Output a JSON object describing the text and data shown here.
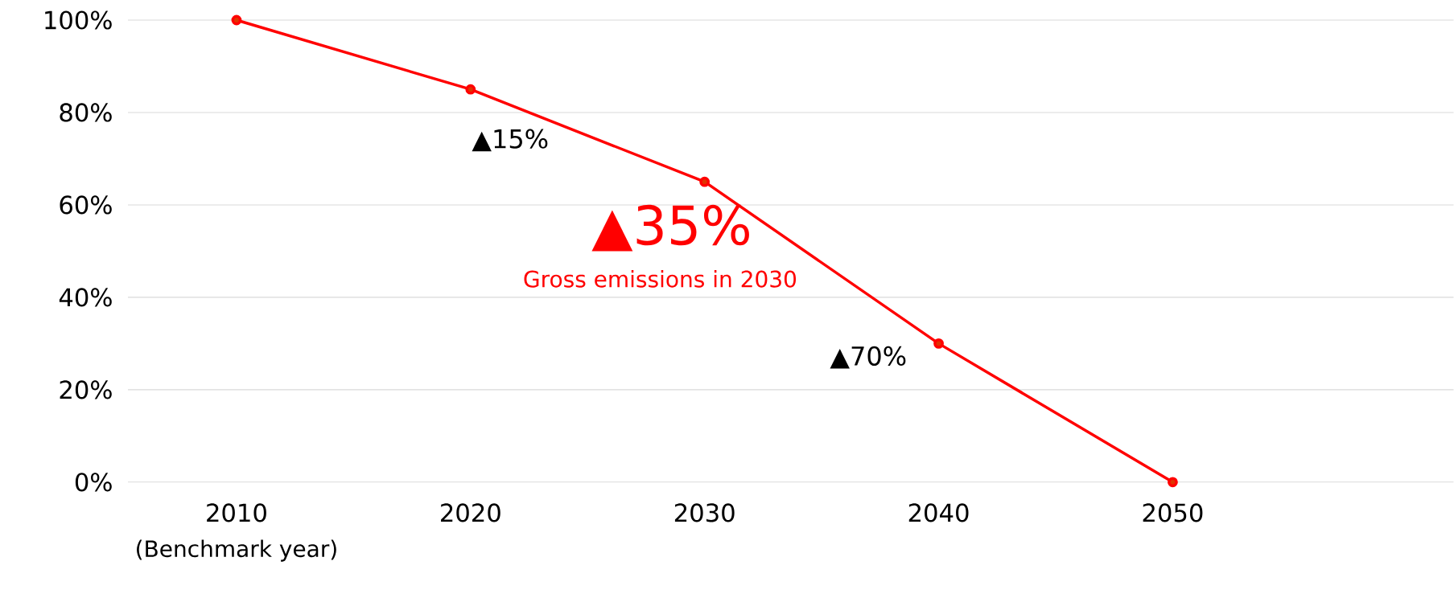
{
  "chart_data": {
    "type": "line",
    "categories": [
      "2010",
      "2020",
      "2030",
      "2040",
      "2050"
    ],
    "series": [
      {
        "color": "#ff0000",
        "values": [
          100,
          85,
          65,
          30,
          0
        ]
      }
    ],
    "ylim": [
      0,
      100
    ],
    "yticks": [
      {
        "value": 0,
        "label": "0%"
      },
      {
        "value": 20,
        "label": "20%"
      },
      {
        "value": 40,
        "label": "40%"
      },
      {
        "value": 60,
        "label": "60%"
      },
      {
        "value": 80,
        "label": "80%"
      },
      {
        "value": 100,
        "label": "100%"
      }
    ],
    "grid": "y",
    "marker": "circle",
    "line_style": "solid",
    "annotations": [
      {
        "text": "▲15%",
        "x": "2020",
        "y": 85
      },
      {
        "text": "▲35%",
        "x": "2030",
        "y": 65
      },
      "Gross emissions in 2030",
      {
        "text": "▲70%",
        "x": "2040",
        "y": 30
      },
      "(Benchmark year)"
    ]
  }
}
